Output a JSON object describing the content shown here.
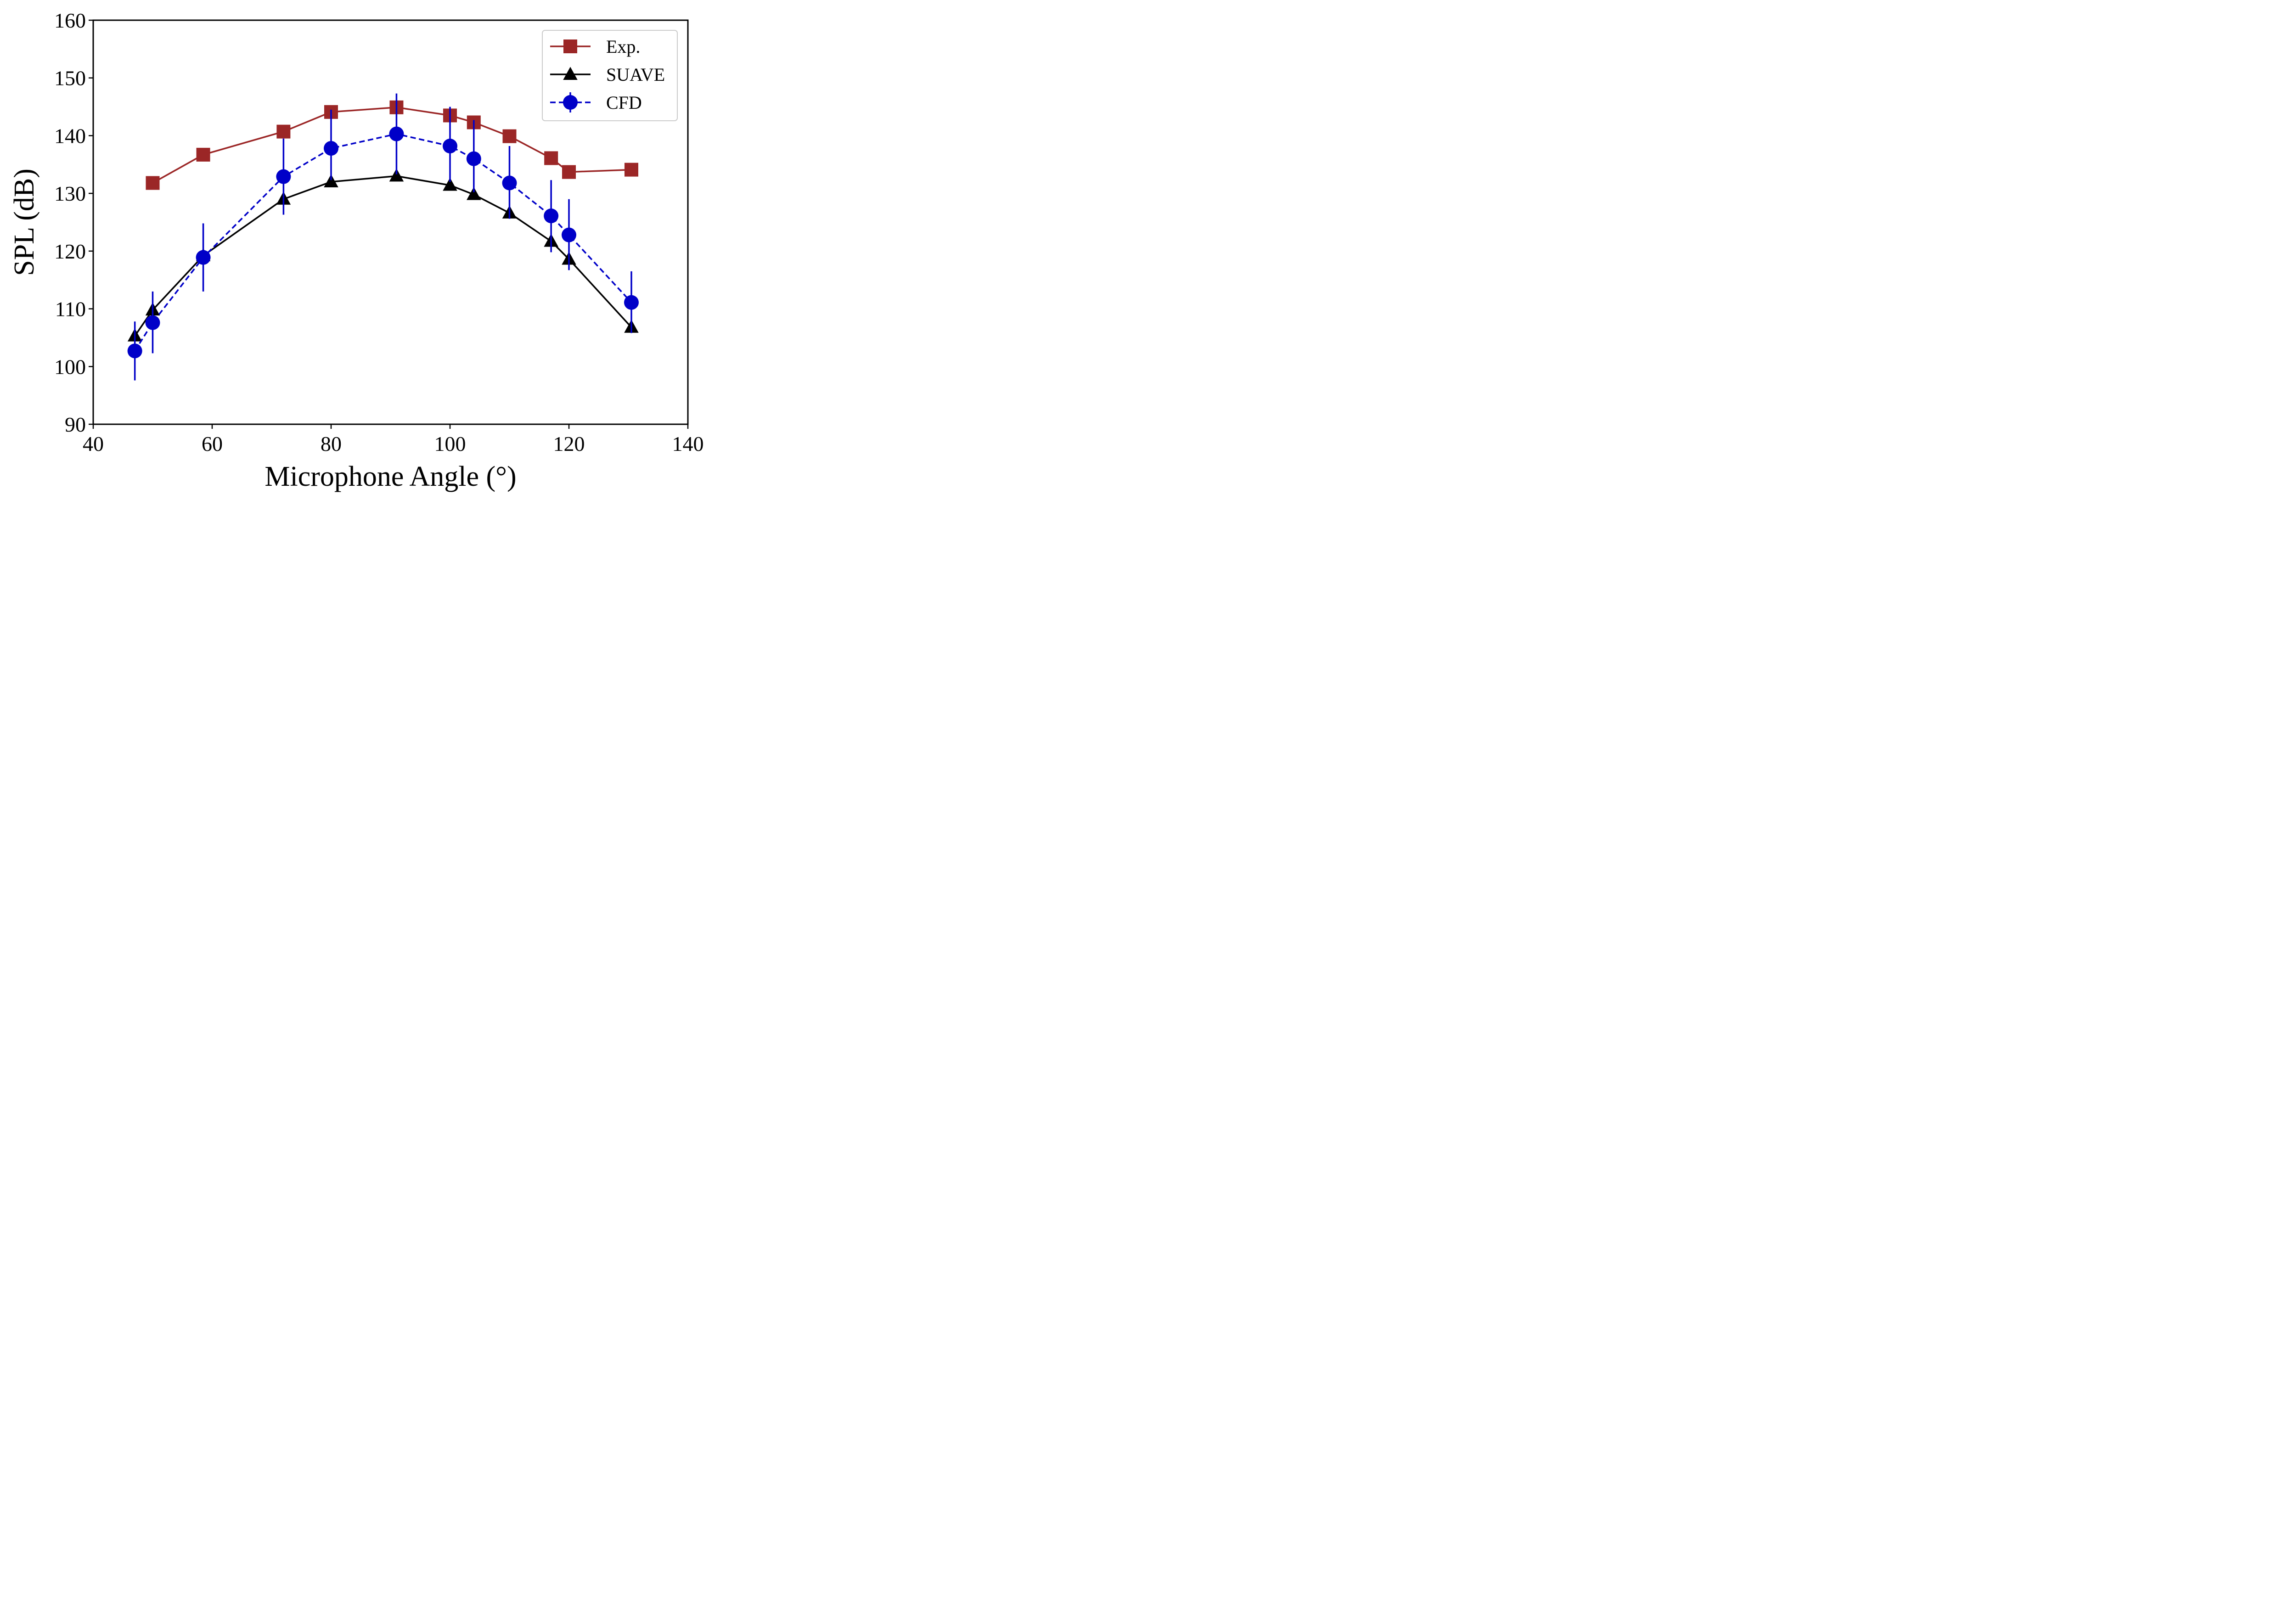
{
  "chart_data": {
    "type": "line",
    "title": "",
    "xlabel": "Microphone Angle (°)",
    "ylabel": "SPL (dB)",
    "xlim": [
      40,
      140
    ],
    "ylim": [
      90,
      160
    ],
    "xticks": [
      40,
      60,
      80,
      100,
      120,
      140
    ],
    "yticks": [
      90,
      100,
      110,
      120,
      130,
      140,
      150,
      160
    ],
    "grid": false,
    "legend_position": "top-right",
    "series": [
      {
        "name": "Exp.",
        "color": "#9b2626",
        "marker": "square",
        "line_style": "solid",
        "x": [
          50,
          58.5,
          72,
          80,
          91,
          100,
          104,
          110,
          117,
          120,
          130.5
        ],
        "y": [
          131.8,
          136.7,
          140.7,
          144.1,
          144.9,
          143.5,
          142.3,
          139.9,
          136.1,
          133.7,
          134.1
        ]
      },
      {
        "name": "SUAVE",
        "color": "#000000",
        "marker": "triangle",
        "line_style": "solid",
        "x": [
          47,
          50,
          58.5,
          72,
          80,
          91,
          100,
          104,
          110,
          117,
          120,
          130.5
        ],
        "y": [
          105.3,
          109.8,
          119.2,
          129,
          132,
          133,
          131.4,
          129.8,
          126.6,
          121.7,
          118.6,
          106.8
        ]
      },
      {
        "name": "CFD",
        "color": "#0000c8",
        "marker": "circle",
        "line_style": "dashed",
        "x": [
          47,
          50,
          58.5,
          72,
          80,
          91,
          100,
          104,
          110,
          117,
          120,
          130.5
        ],
        "y": [
          102.7,
          107.6,
          118.9,
          132.9,
          137.8,
          140.3,
          138.2,
          136,
          131.8,
          126.1,
          122.8,
          111.1
        ],
        "err_low": [
          97.6,
          102.3,
          113,
          126.3,
          132.3,
          133.3,
          132,
          130.2,
          125.6,
          119.8,
          116.7,
          105.8
        ],
        "err_high": [
          107.8,
          113,
          124.8,
          139.5,
          144.5,
          147.3,
          145,
          142.7,
          138.2,
          132.3,
          129,
          116.5
        ]
      }
    ]
  }
}
